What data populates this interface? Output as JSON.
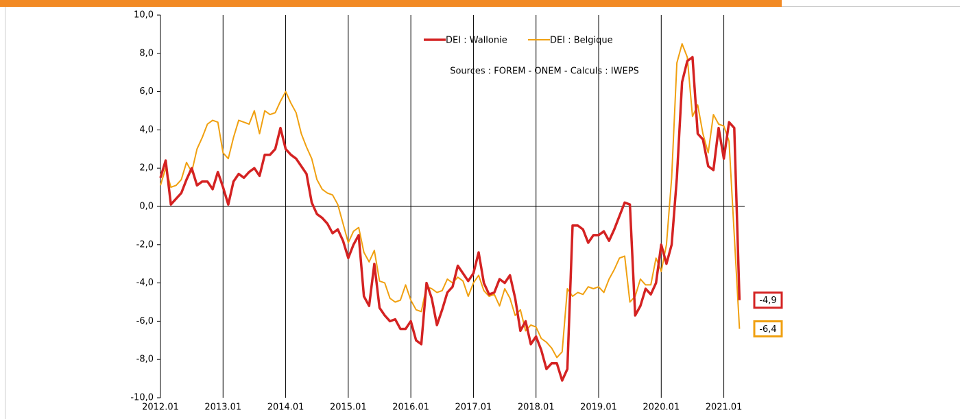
{
  "chart_data": {
    "type": "line",
    "annotation": "Sources : FOREM - ONEM - Calculs : IWEPS",
    "legend": "top",
    "categories": [
      "2012.01",
      null,
      null,
      null,
      null,
      null,
      null,
      null,
      null,
      null,
      null,
      null,
      "2013.01",
      null,
      null,
      null,
      null,
      null,
      null,
      null,
      null,
      null,
      null,
      null,
      "2014.01",
      null,
      null,
      null,
      null,
      null,
      null,
      null,
      null,
      null,
      null,
      null,
      "2015.01",
      null,
      null,
      null,
      null,
      null,
      null,
      null,
      null,
      null,
      null,
      null,
      "2016.01",
      null,
      null,
      null,
      null,
      null,
      null,
      null,
      null,
      null,
      null,
      null,
      "2017.01",
      null,
      null,
      null,
      null,
      null,
      null,
      null,
      null,
      null,
      null,
      null,
      "2018.01",
      null,
      null,
      null,
      null,
      null,
      null,
      null,
      null,
      null,
      null,
      null,
      "2019.01",
      null,
      null,
      null,
      null,
      null,
      null,
      null,
      null,
      null,
      null,
      null,
      "2020.01",
      null,
      null,
      null,
      null,
      null,
      null,
      null,
      null,
      null,
      null,
      null,
      "2021.01",
      null,
      null,
      null
    ],
    "ylim": [
      -10,
      10
    ],
    "yticks": [
      {
        "value": -10,
        "label": "-10,0"
      },
      {
        "value": -8,
        "label": "-8,0"
      },
      {
        "value": -6,
        "label": "-6,0"
      },
      {
        "value": -4,
        "label": "-4,0"
      },
      {
        "value": -2,
        "label": "-2,0"
      },
      {
        "value": 0,
        "label": "0,0"
      },
      {
        "value": 2,
        "label": "2,0"
      },
      {
        "value": 4,
        "label": "4,0"
      },
      {
        "value": 6,
        "label": "6,0"
      },
      {
        "value": 8,
        "label": "8,0"
      },
      {
        "value": 10,
        "label": "10,0"
      }
    ],
    "series": [
      {
        "name": "DEI : Wallonie",
        "color": "#d42222",
        "width": 3.5,
        "values": [
          1.5,
          2.4,
          0.1,
          0.4,
          0.7,
          1.4,
          2.0,
          1.1,
          1.3,
          1.3,
          0.9,
          1.8,
          1.0,
          0.1,
          1.3,
          1.7,
          1.5,
          1.8,
          2.0,
          1.6,
          2.7,
          2.7,
          3.0,
          4.1,
          3.0,
          2.7,
          2.5,
          2.1,
          1.7,
          0.2,
          -0.4,
          -0.6,
          -0.9,
          -1.4,
          -1.2,
          -1.8,
          -2.7,
          -2.0,
          -1.5,
          -4.7,
          -5.2,
          -3.0,
          -5.3,
          -5.7,
          -6.0,
          -5.9,
          -6.4,
          -6.4,
          -6.0,
          -7.0,
          -7.2,
          -4.0,
          -4.8,
          -6.2,
          -5.4,
          -4.5,
          -4.2,
          -3.1,
          -3.5,
          -3.9,
          -3.5,
          -2.4,
          -4.0,
          -4.6,
          -4.5,
          -3.8,
          -4.0,
          -3.6,
          -4.8,
          -6.5,
          -6.0,
          -7.2,
          -6.8,
          -7.5,
          -8.5,
          -8.2,
          -8.2,
          -9.1,
          -8.5,
          -1.0,
          -1.0,
          -1.2,
          -1.9,
          -1.5,
          -1.5,
          -1.3,
          -1.8,
          -1.2,
          -0.5,
          0.2,
          0.1,
          -5.7,
          -5.2,
          -4.3,
          -4.6,
          -4.0,
          -2.0,
          -3.0,
          -2.0,
          1.5,
          6.5,
          7.6,
          7.8,
          3.8,
          3.5,
          2.1,
          1.9,
          4.1,
          2.5,
          4.4,
          4.1,
          -4.9
        ],
        "value_labels": [
          null,
          null,
          null,
          null,
          null,
          null,
          null,
          null,
          null,
          null,
          null,
          null,
          null,
          null,
          null,
          null,
          null,
          null,
          null,
          null,
          null,
          null,
          null,
          null,
          null,
          null,
          null,
          null,
          null,
          null,
          null,
          null,
          null,
          null,
          null,
          null,
          null,
          null,
          null,
          null,
          null,
          null,
          null,
          null,
          null,
          null,
          null,
          null,
          null,
          null,
          null,
          null,
          null,
          null,
          null,
          null,
          null,
          null,
          null,
          null,
          null,
          null,
          null,
          null,
          null,
          null,
          null,
          null,
          null,
          null,
          null,
          null,
          null,
          null,
          null,
          null,
          null,
          null,
          null,
          null,
          null,
          null,
          null,
          null,
          null,
          null,
          null,
          null,
          null,
          null,
          null,
          null,
          null,
          null,
          null,
          null,
          null,
          null,
          null,
          null,
          null,
          null,
          null,
          null,
          null,
          null,
          null,
          null,
          null,
          null,
          null,
          "-4,9"
        ]
      },
      {
        "name": "DEI : Belgique",
        "color": "#f0a010",
        "width": 2,
        "values": [
          1.1,
          2.0,
          1.0,
          1.1,
          1.4,
          2.3,
          1.8,
          3.0,
          3.6,
          4.3,
          4.5,
          4.4,
          2.8,
          2.5,
          3.6,
          4.5,
          4.4,
          4.3,
          5.0,
          3.8,
          5.0,
          4.8,
          4.9,
          5.5,
          6.0,
          5.4,
          4.9,
          3.8,
          3.1,
          2.5,
          1.4,
          0.9,
          0.7,
          0.6,
          0.1,
          -0.9,
          -1.9,
          -1.3,
          -1.1,
          -2.4,
          -2.9,
          -2.3,
          -3.9,
          -4.0,
          -4.8,
          -5.0,
          -4.9,
          -4.1,
          -4.9,
          -5.4,
          -5.5,
          -4.2,
          -4.3,
          -4.5,
          -4.4,
          -3.8,
          -4.0,
          -3.7,
          -3.9,
          -4.7,
          -4.0,
          -3.6,
          -4.4,
          -4.7,
          -4.6,
          -5.2,
          -4.3,
          -4.8,
          -5.7,
          -5.4,
          -6.5,
          -6.2,
          -6.3,
          -6.9,
          -7.1,
          -7.4,
          -7.9,
          -7.6,
          -4.3,
          -4.7,
          -4.5,
          -4.6,
          -4.2,
          -4.3,
          -4.2,
          -4.5,
          -3.8,
          -3.3,
          -2.7,
          -2.6,
          -5.0,
          -4.7,
          -3.8,
          -4.1,
          -4.1,
          -2.7,
          -3.4,
          -2.0,
          1.5,
          7.5,
          8.5,
          7.8,
          4.7,
          5.3,
          3.8,
          2.8,
          4.8,
          4.3,
          4.2,
          3.4,
          -1.5,
          -6.4
        ],
        "value_labels": [
          null,
          null,
          null,
          null,
          null,
          null,
          null,
          null,
          null,
          null,
          null,
          null,
          null,
          null,
          null,
          null,
          null,
          null,
          null,
          null,
          null,
          null,
          null,
          null,
          null,
          null,
          null,
          null,
          null,
          null,
          null,
          null,
          null,
          null,
          null,
          null,
          null,
          null,
          null,
          null,
          null,
          null,
          null,
          null,
          null,
          null,
          null,
          null,
          null,
          null,
          null,
          null,
          null,
          null,
          null,
          null,
          null,
          null,
          null,
          null,
          null,
          null,
          null,
          null,
          null,
          null,
          null,
          null,
          null,
          null,
          null,
          null,
          null,
          null,
          null,
          null,
          null,
          null,
          null,
          null,
          null,
          null,
          null,
          null,
          null,
          null,
          null,
          null,
          null,
          null,
          null,
          null,
          null,
          null,
          null,
          null,
          null,
          null,
          null,
          null,
          null,
          null,
          null,
          null,
          null,
          null,
          null,
          null,
          null,
          null,
          null,
          "-6,4"
        ]
      }
    ]
  }
}
